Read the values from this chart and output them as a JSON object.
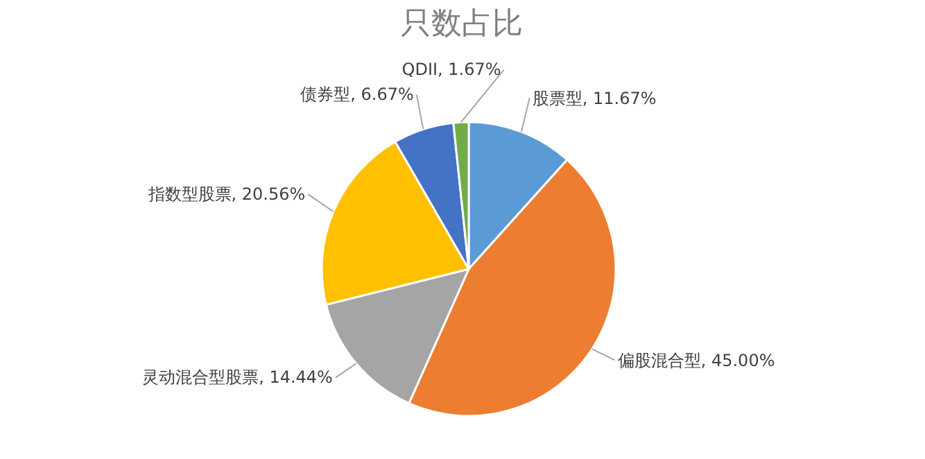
{
  "chart_data": {
    "type": "pie",
    "title": "只数占比",
    "categories": [
      "股票型",
      "偏股混合型",
      "灵动混合型股票",
      "指数型股票",
      "债券型",
      "QDII"
    ],
    "values": [
      11.67,
      45.0,
      14.44,
      20.56,
      6.67,
      1.67
    ],
    "value_labels": [
      "11.67%",
      "45.00%",
      "14.44%",
      "20.56%",
      "6.67%",
      "1.67%"
    ],
    "colors": [
      "#5b9bd5",
      "#ed7d31",
      "#a5a5a5",
      "#ffc000",
      "#4472c4",
      "#70ad47"
    ]
  }
}
